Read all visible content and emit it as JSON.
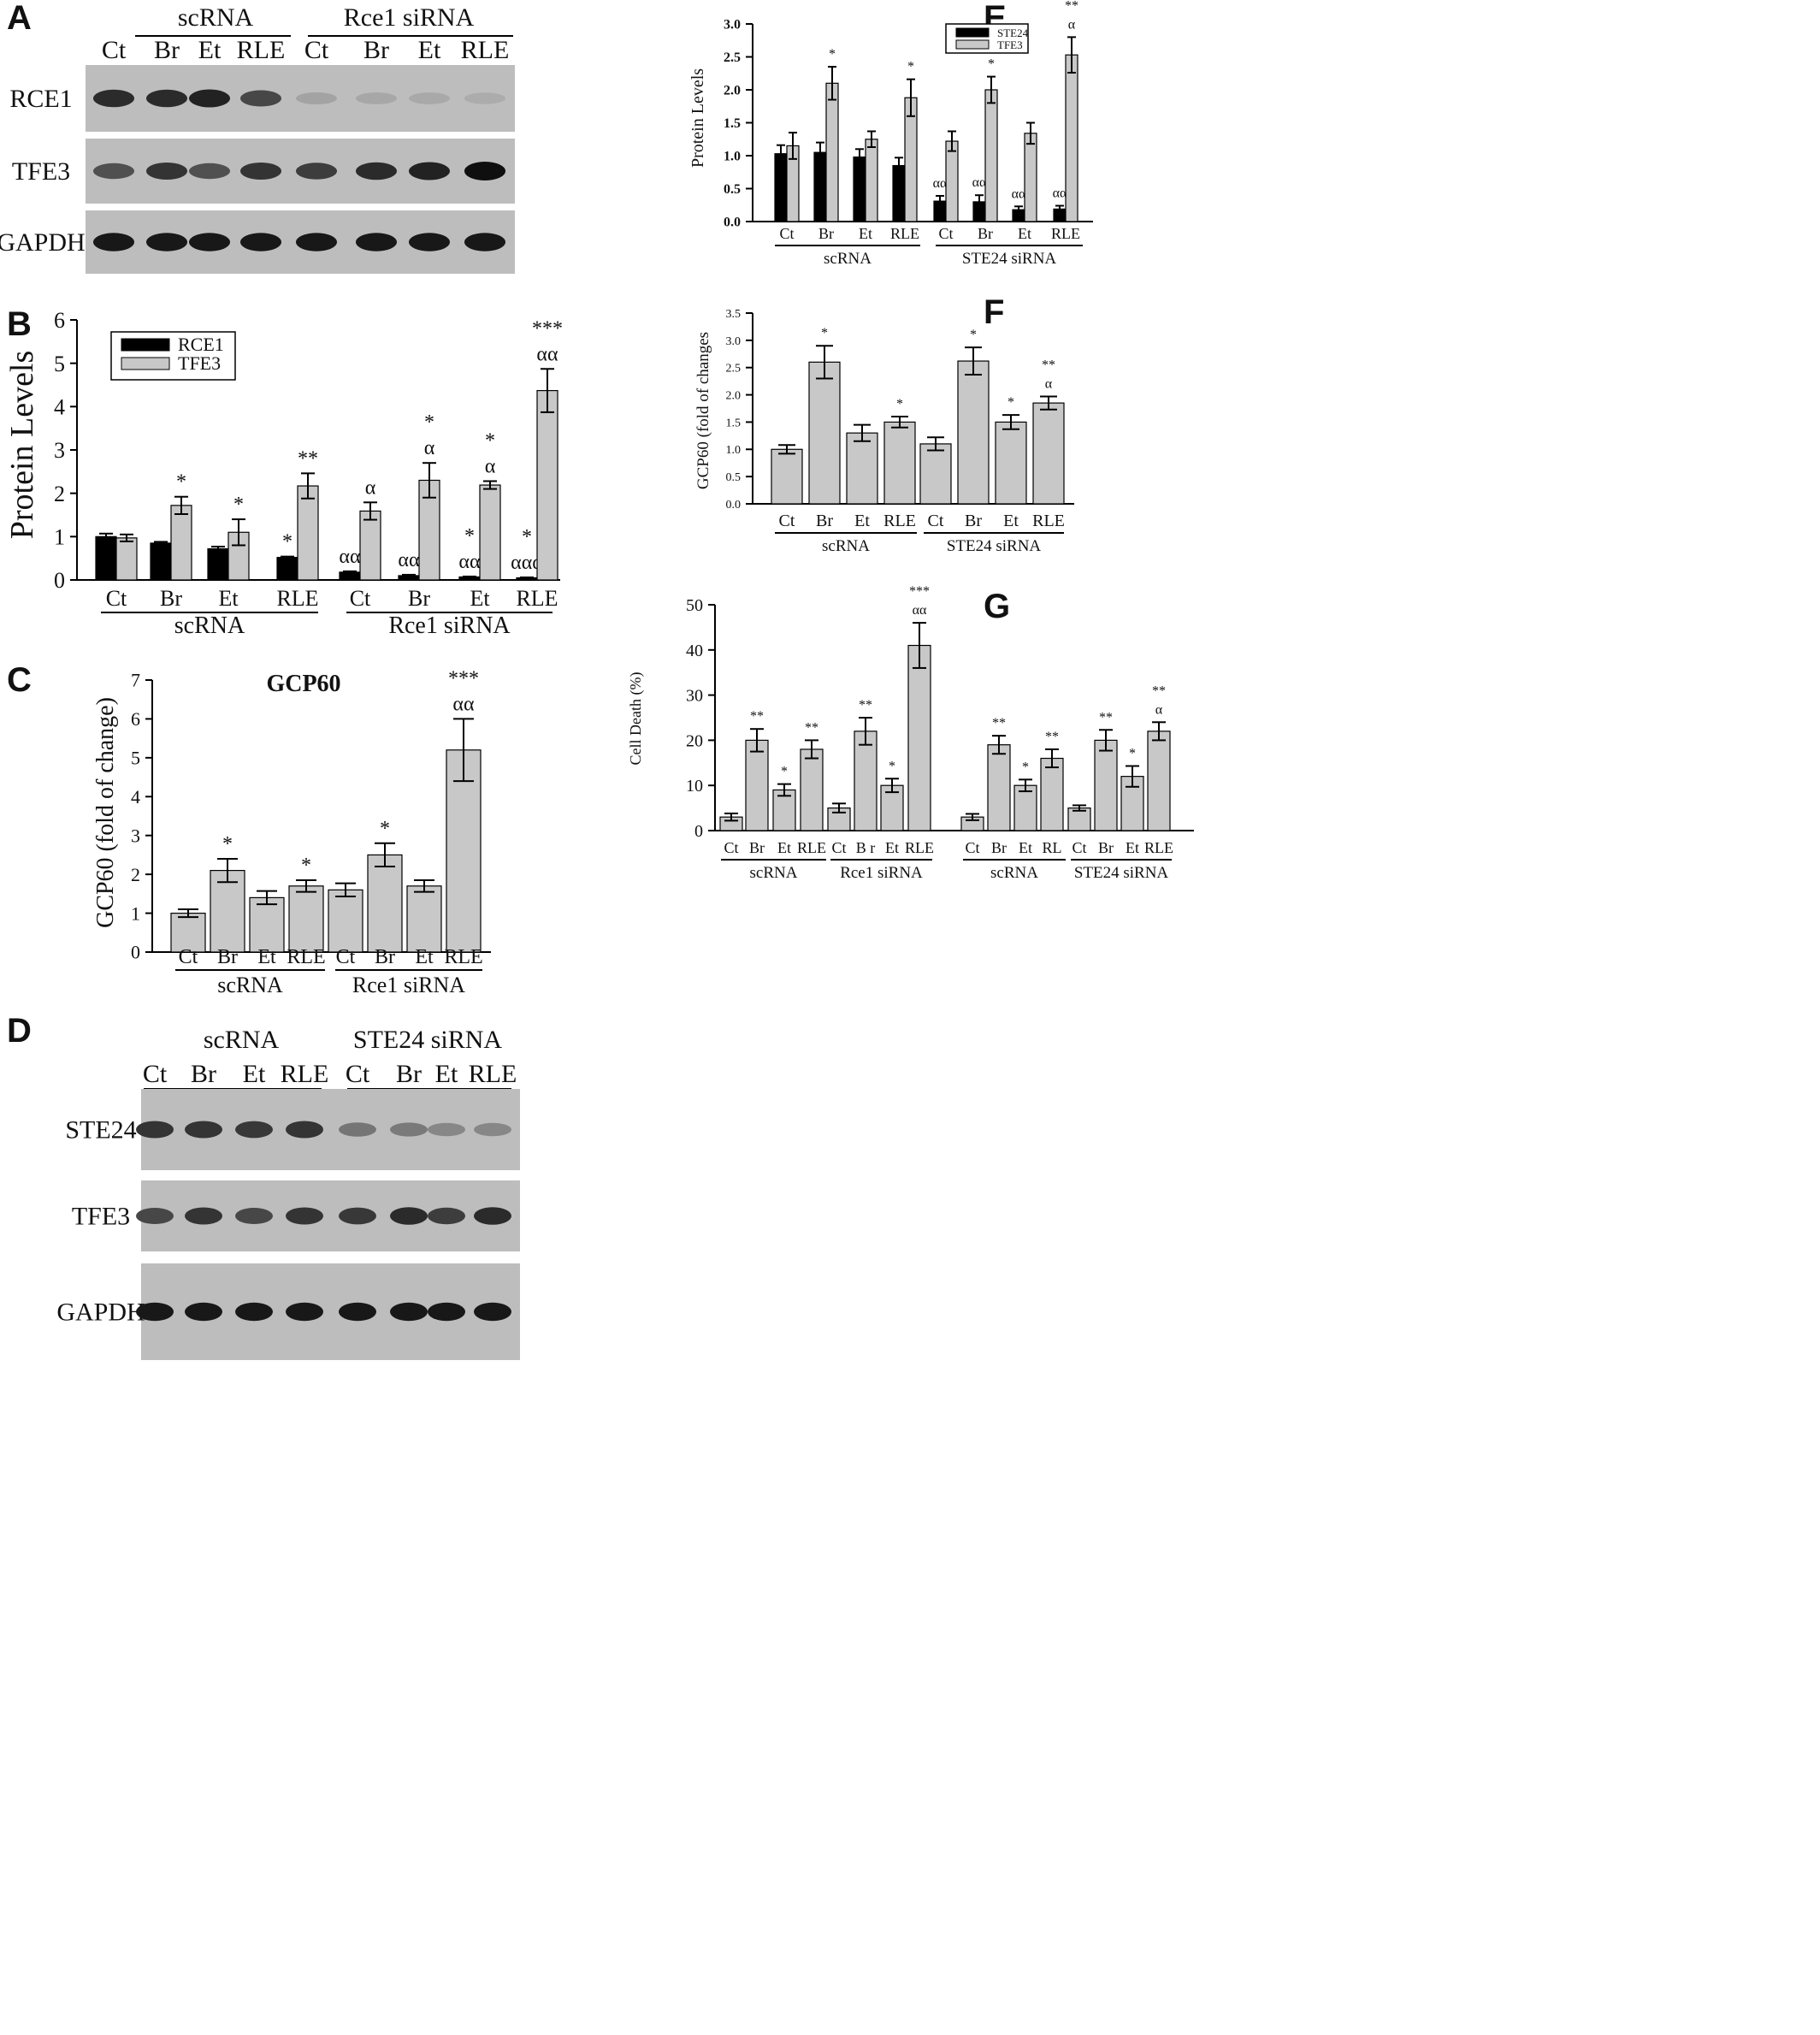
{
  "panels": {
    "A": {
      "letter": "A",
      "groups": [
        "scRNA",
        "Rce1 siRNA"
      ],
      "lanes": [
        "Ct",
        "Br",
        "Et",
        "RLE",
        "Ct",
        "Br",
        "Et",
        "RLE"
      ],
      "blots": [
        {
          "label": "RCE1",
          "intensity": [
            0.85,
            0.85,
            0.9,
            0.7,
            0.2,
            0.18,
            0.17,
            0.15
          ]
        },
        {
          "label": "TFE3",
          "intensity": [
            0.65,
            0.8,
            0.65,
            0.8,
            0.75,
            0.85,
            0.9,
            1.0
          ]
        },
        {
          "label": "GAPDH",
          "intensity": [
            0.95,
            0.95,
            0.95,
            0.95,
            0.95,
            0.95,
            0.95,
            0.95
          ]
        }
      ]
    },
    "D": {
      "letter": "D",
      "groups": [
        "scRNA",
        "STE24 siRNA"
      ],
      "lanes": [
        "Ct",
        "Br",
        "Et",
        "RLE",
        "Ct",
        "Br",
        "Et",
        "RLE"
      ],
      "blots": [
        {
          "label": "STE24",
          "intensity": [
            0.8,
            0.8,
            0.78,
            0.8,
            0.45,
            0.42,
            0.35,
            0.35
          ]
        },
        {
          "label": "TFE3",
          "intensity": [
            0.7,
            0.8,
            0.7,
            0.8,
            0.78,
            0.85,
            0.75,
            0.85
          ]
        },
        {
          "label": "GAPDH",
          "intensity": [
            0.95,
            0.95,
            0.95,
            0.95,
            0.95,
            0.95,
            0.95,
            0.95
          ]
        }
      ]
    },
    "B": {
      "letter": "B"
    },
    "C": {
      "letter": "C"
    },
    "E": {
      "letter": "E"
    },
    "F": {
      "letter": "F"
    },
    "G": {
      "letter": "G"
    }
  },
  "chart_data": [
    {
      "id": "B",
      "type": "bar",
      "ylabel": "Protein Levels",
      "ylim": [
        0,
        6
      ],
      "yticks": [
        "0",
        "1",
        "2",
        "3",
        "4",
        "5",
        "6"
      ],
      "categories": [
        "Ct",
        "Br",
        "Et",
        "RLE",
        "Ct",
        "Br",
        "Et",
        "RLE"
      ],
      "groups": [
        "scRNA",
        "Rce1 siRNA"
      ],
      "series": [
        {
          "name": "RCE1",
          "color": "#000000",
          "values": [
            1.0,
            0.85,
            0.72,
            0.52,
            0.18,
            0.1,
            0.07,
            0.05
          ],
          "errors": [
            0.07,
            0.03,
            0.05,
            0.02,
            0.02,
            0.02,
            0.01,
            0.01
          ],
          "annotations": [
            "",
            "",
            "",
            "*",
            "αα",
            "αα",
            "*|αα",
            "*|ααα"
          ]
        },
        {
          "name": "TFE3",
          "color": "#c8c8c8",
          "values": [
            0.97,
            1.72,
            1.1,
            2.17,
            1.59,
            2.3,
            2.19,
            4.37
          ],
          "errors": [
            0.08,
            0.2,
            0.3,
            0.29,
            0.2,
            0.4,
            0.09,
            0.5
          ],
          "annotations": [
            "",
            "*",
            "*",
            "**",
            "α",
            "*|α",
            "*|α",
            "***|αα"
          ]
        }
      ],
      "legend": "top-left"
    },
    {
      "id": "C",
      "type": "bar",
      "title": "GCP60",
      "ylabel": "GCP60 (fold of change)",
      "ylim": [
        0,
        7
      ],
      "yticks": [
        "0",
        "1",
        "2",
        "3",
        "4",
        "5",
        "6",
        "7"
      ],
      "categories": [
        "Ct",
        "Br",
        "Et",
        "RLE",
        "Ct",
        "Br",
        "Et",
        "RLE"
      ],
      "groups": [
        "scRNA",
        "Rce1 siRNA"
      ],
      "series": [
        {
          "color": "#c8c8c8",
          "values": [
            1.0,
            2.1,
            1.4,
            1.7,
            1.6,
            2.5,
            1.7,
            5.2
          ],
          "errors": [
            0.1,
            0.3,
            0.17,
            0.15,
            0.17,
            0.3,
            0.15,
            0.8
          ],
          "annotations": [
            "",
            "*",
            "",
            "*",
            "",
            "*",
            "",
            "***|αα"
          ]
        }
      ]
    },
    {
      "id": "E",
      "type": "bar",
      "ylabel": "Protein Levels",
      "ylim": [
        0,
        3.0
      ],
      "yticks": [
        "0.0",
        "0.5",
        "1.0",
        "1.5",
        "2.0",
        "2.5",
        "3.0"
      ],
      "categories": [
        "Ct",
        "Br",
        "Et",
        "RLE",
        "Ct",
        "Br",
        "Et",
        "RLE"
      ],
      "groups": [
        "scRNA",
        "STE24 siRNA"
      ],
      "series": [
        {
          "name": "STE24",
          "color": "#000000",
          "values": [
            1.03,
            1.05,
            0.98,
            0.85,
            0.31,
            0.3,
            0.18,
            0.19
          ],
          "errors": [
            0.13,
            0.15,
            0.12,
            0.12,
            0.08,
            0.1,
            0.05,
            0.05
          ],
          "annotations": [
            "",
            "",
            "",
            "",
            "αα",
            "αα",
            "αα",
            "αα"
          ]
        },
        {
          "name": "TFE3",
          "color": "#c8c8c8",
          "values": [
            1.15,
            2.1,
            1.25,
            1.88,
            1.22,
            2.0,
            1.34,
            2.53
          ],
          "errors": [
            0.2,
            0.25,
            0.12,
            0.28,
            0.15,
            0.2,
            0.16,
            0.27
          ],
          "annotations": [
            "",
            "*",
            "",
            "*",
            "",
            "*",
            "",
            "**|α"
          ]
        }
      ],
      "legend": "top-left"
    },
    {
      "id": "F",
      "type": "bar",
      "ylabel": "GCP60 (fold of changes",
      "ylim": [
        0,
        3.5
      ],
      "yticks": [
        "0.0",
        "0.5",
        "1.0",
        "1.5",
        "2.0",
        "2.5",
        "3.0",
        "3.5"
      ],
      "categories": [
        "Ct",
        "Br",
        "Et",
        "RLE",
        "Ct",
        "Br",
        "Et",
        "RLE"
      ],
      "groups": [
        "scRNA",
        "STE24 siRNA"
      ],
      "series": [
        {
          "color": "#c8c8c8",
          "values": [
            1.0,
            2.6,
            1.3,
            1.5,
            1.1,
            2.62,
            1.5,
            1.85
          ],
          "errors": [
            0.08,
            0.3,
            0.15,
            0.1,
            0.12,
            0.25,
            0.13,
            0.12
          ],
          "annotations": [
            "",
            "*",
            "",
            "*",
            "",
            "*",
            "*",
            "**|α"
          ]
        }
      ]
    },
    {
      "id": "G",
      "type": "bar",
      "ylabel": "Cell Death (%)",
      "ylim": [
        0,
        50
      ],
      "yticks": [
        "0",
        "10",
        "20",
        "30",
        "40",
        "50"
      ],
      "categories": [
        "Ct",
        "Br",
        "Et",
        "RLE",
        "Ct",
        "B r",
        "Et",
        "RLE",
        "Ct",
        "Br",
        "Et",
        "RL",
        "Ct",
        "Br",
        "Et",
        "RLE"
      ],
      "groups": [
        "scRNA",
        "Rce1 siRNA",
        "scRNA",
        "STE24 siRNA"
      ],
      "series": [
        {
          "color": "#c8c8c8",
          "values": [
            3,
            20,
            9,
            18,
            5,
            22,
            10,
            41,
            3,
            19,
            10,
            16,
            5,
            20,
            12,
            22
          ],
          "errors": [
            0.8,
            2.5,
            1.3,
            2,
            1,
            3,
            1.5,
            5,
            0.7,
            2,
            1.3,
            2,
            0.6,
            2.3,
            2.3,
            2
          ],
          "annotations": [
            "",
            "**",
            "*",
            "**",
            "",
            "**",
            "*",
            "***|αα",
            "",
            "**",
            "*",
            "**",
            "",
            "**",
            "*",
            "**|α"
          ]
        }
      ]
    }
  ]
}
